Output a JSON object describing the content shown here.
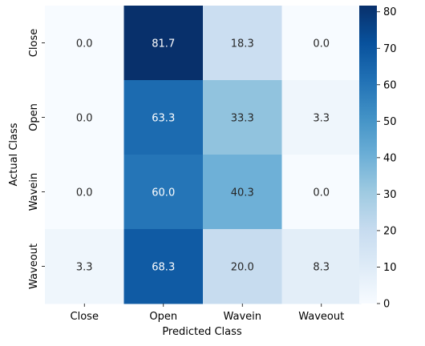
{
  "chart_data": {
    "type": "heatmap",
    "title": "",
    "xlabel": "Predicted Class",
    "ylabel": "Actual Class",
    "x_categories": [
      "Close",
      "Open",
      "Wavein",
      "Waveout"
    ],
    "y_categories": [
      "Close",
      "Open",
      "Wavein",
      "Waveout"
    ],
    "values": [
      [
        0.0,
        81.7,
        18.3,
        0.0
      ],
      [
        0.0,
        63.3,
        33.3,
        3.3
      ],
      [
        0.0,
        60.0,
        40.3,
        0.0
      ],
      [
        3.3,
        68.3,
        20.0,
        8.3
      ]
    ],
    "value_labels": [
      [
        "0.0",
        "81.7",
        "18.3",
        "0.0"
      ],
      [
        "0.0",
        "63.3",
        "33.3",
        "3.3"
      ],
      [
        "0.0",
        "60.0",
        "40.3",
        "0.0"
      ],
      [
        "3.3",
        "68.3",
        "20.0",
        "8.3"
      ]
    ],
    "colormap": "Blues",
    "color_range": [
      0,
      81.7
    ],
    "colorbar_ticks": [
      "0",
      "10",
      "20",
      "30",
      "40",
      "50",
      "60",
      "70",
      "80"
    ],
    "colorbar_tick_values": [
      0,
      10,
      20,
      30,
      40,
      50,
      60,
      70,
      80
    ],
    "legend": "colorbar-right",
    "grid": false
  }
}
